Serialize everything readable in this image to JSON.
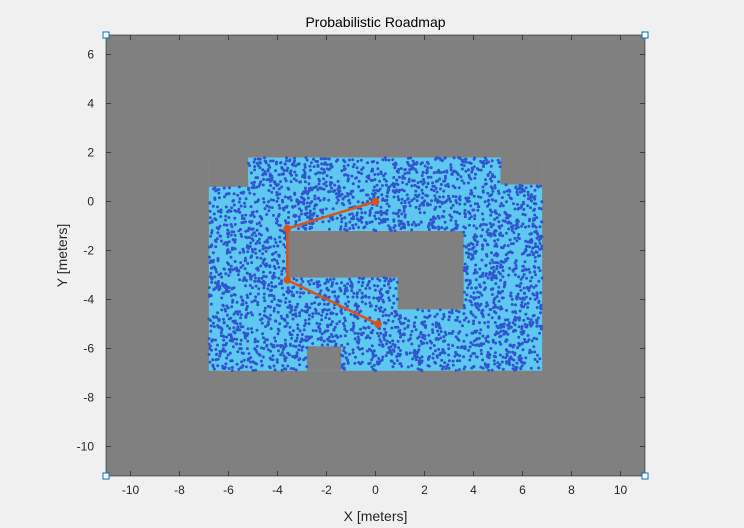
{
  "chart_data": {
    "type": "scatter",
    "title": "Probabilistic Roadmap",
    "xlabel": "X [meters]",
    "ylabel": "Y [meters]",
    "xlim": [
      -11,
      11
    ],
    "ylim": [
      -11.2,
      6.8
    ],
    "x_ticks": [
      -10,
      -8,
      -6,
      -4,
      -2,
      0,
      2,
      4,
      6,
      8,
      10
    ],
    "y_ticks": [
      6,
      4,
      2,
      0,
      -2,
      -4,
      -6,
      -8,
      -10
    ],
    "grid": false,
    "free_space_region": {
      "outline": [
        [
          -6.8,
          1.8
        ],
        [
          6.8,
          1.8
        ],
        [
          6.8,
          -6.9
        ],
        [
          -6.8,
          -6.9
        ]
      ],
      "notches": [
        [
          [
            -6.8,
            1.8
          ],
          [
            -5.2,
            1.8
          ],
          [
            -5.2,
            0.6
          ],
          [
            -6.8,
            0.6
          ]
        ],
        [
          [
            5.1,
            1.8
          ],
          [
            6.8,
            1.8
          ],
          [
            6.8,
            0.7
          ],
          [
            5.1,
            0.7
          ]
        ],
        [
          [
            -2.8,
            -5.9
          ],
          [
            -1.4,
            -5.9
          ],
          [
            -1.4,
            -6.9
          ],
          [
            -2.8,
            -6.9
          ]
        ]
      ],
      "inner_obstacle": [
        [
          -3.6,
          -1.2
        ],
        [
          3.6,
          -1.2
        ],
        [
          3.6,
          -4.4
        ],
        [
          0.9,
          -4.4
        ],
        [
          0.9,
          -3.1
        ],
        [
          -3.6,
          -3.1
        ]
      ]
    },
    "path": {
      "x": [
        0.0,
        -3.6,
        -3.6,
        0.1
      ],
      "y": [
        0.0,
        -1.1,
        -3.2,
        -5.0
      ]
    },
    "colors": {
      "figure_bg": "#f0f0f0",
      "occupied": "#808080",
      "free_space": "#5ec8f0",
      "nodes": "#2f55cc",
      "path": "#d95319"
    }
  }
}
